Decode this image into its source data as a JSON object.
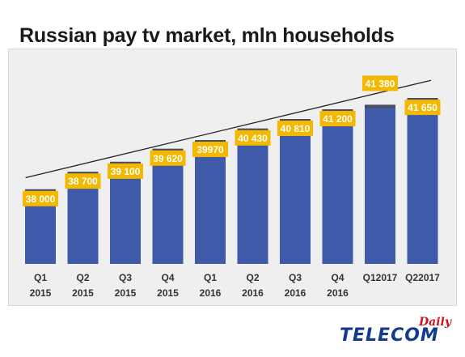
{
  "chart_data": {
    "type": "bar",
    "title": "Russian pay tv market, mln households",
    "categories": [
      [
        "Q1",
        "2015"
      ],
      [
        "Q2",
        "2015"
      ],
      [
        "Q3",
        "2015"
      ],
      [
        "Q4",
        "2015"
      ],
      [
        "Q1",
        "2016"
      ],
      [
        "Q2",
        "2016"
      ],
      [
        "Q3",
        "2016"
      ],
      [
        "Q4",
        "2016"
      ],
      [
        "Q12017"
      ],
      [
        "Q22017"
      ]
    ],
    "values": [
      38000,
      38700,
      39100,
      39620,
      39970,
      40430,
      40810,
      41200,
      41380,
      41650
    ],
    "data_labels": [
      "38 000",
      "38 700",
      "39 100",
      "39 620",
      "39970",
      "40 430",
      "40 810",
      "41 200",
      "41 380",
      "41 650"
    ],
    "trendline": "linear",
    "colors": {
      "bar": "#3f5aa8",
      "bar_top": "#4a4f5c",
      "label_bg": "#f5b800",
      "label_text": "#ffffff",
      "trend": "#222222"
    }
  },
  "logo": {
    "main": "TELECOM",
    "sub": "Daily"
  }
}
